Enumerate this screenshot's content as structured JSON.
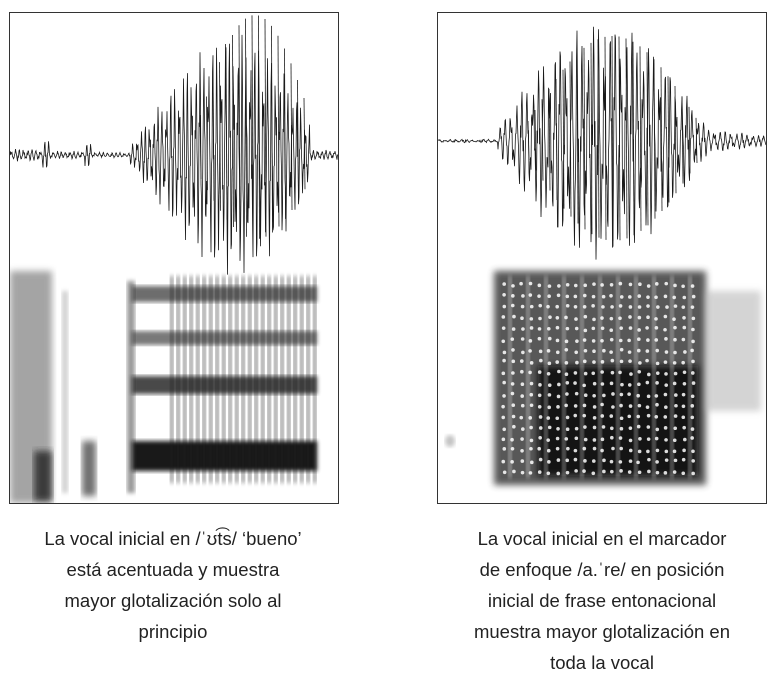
{
  "figure": {
    "left": {
      "caption_lines": [
        "La vocal inicial en /ˈʊt͡s/ ‘bueno’",
        "está acentuada y muestra",
        "mayor glotalización solo al",
        "principio"
      ]
    },
    "right": {
      "caption_lines": [
        "La vocal inicial en el marcador",
        "de enfoque /a.ˈre/ en posición",
        "inicial de frase entonacional",
        "muestra mayor glotalización en",
        "toda la vocal"
      ]
    }
  },
  "colors": {
    "ink": "#1a1a1a",
    "frame": "#333333",
    "background": "#ffffff"
  }
}
